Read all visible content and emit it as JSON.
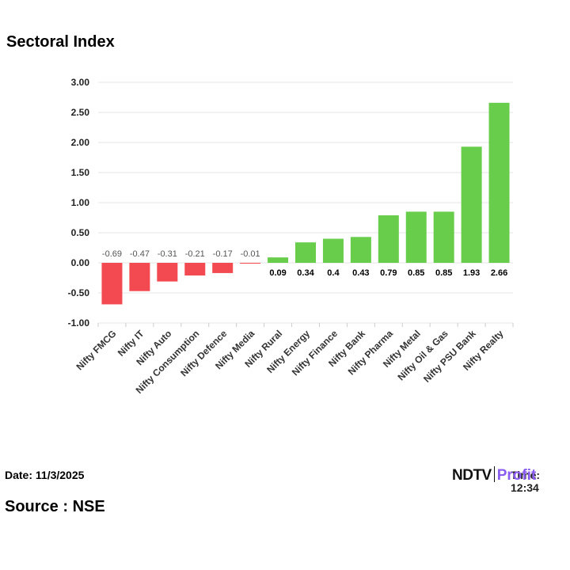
{
  "title": "Sectoral Index",
  "footer": {
    "date": "Date: 11/3/2025",
    "time": "Time: 12:34",
    "source": "Source : NSE",
    "logo_ndtv": "NDTV",
    "logo_profit": "Profit"
  },
  "colors": {
    "negative": "#f24a50",
    "positive": "#67cd4b",
    "grid": "#e6e6e6"
  },
  "chart_data": {
    "type": "bar",
    "title": "Sectoral Index",
    "categories": [
      "Nifty FMCG",
      "Nifty IT",
      "Nifty Auto",
      "Nifty Consumption",
      "Nifty Defence",
      "Nifty Media",
      "Nifty Rural",
      "Nifty Energy",
      "Nifty Finance",
      "Nifty Bank",
      "Nifty Pharma",
      "Nifty Metal",
      "Nifty Oil & Gas",
      "Nifty PSU Bank",
      "Nifty Realty"
    ],
    "values": [
      -0.69,
      -0.47,
      -0.31,
      -0.21,
      -0.17,
      -0.01,
      0.09,
      0.34,
      0.4,
      0.43,
      0.79,
      0.85,
      0.85,
      1.93,
      2.66
    ],
    "data_labels": [
      "-0.69",
      "-0.47",
      "-0.31",
      "-0.21",
      "-0.17",
      "-0.01",
      "0.09",
      "0.34",
      "0.4",
      "0.43",
      "0.79",
      "0.85",
      "0.85",
      "1.93",
      "2.66"
    ],
    "yticks": [
      "-1.00",
      "-0.50",
      "0.00",
      "0.50",
      "1.00",
      "1.50",
      "2.00",
      "2.50",
      "3.00"
    ],
    "ylim": [
      -1,
      3
    ],
    "grid": true,
    "xlabel": "",
    "ylabel": ""
  }
}
